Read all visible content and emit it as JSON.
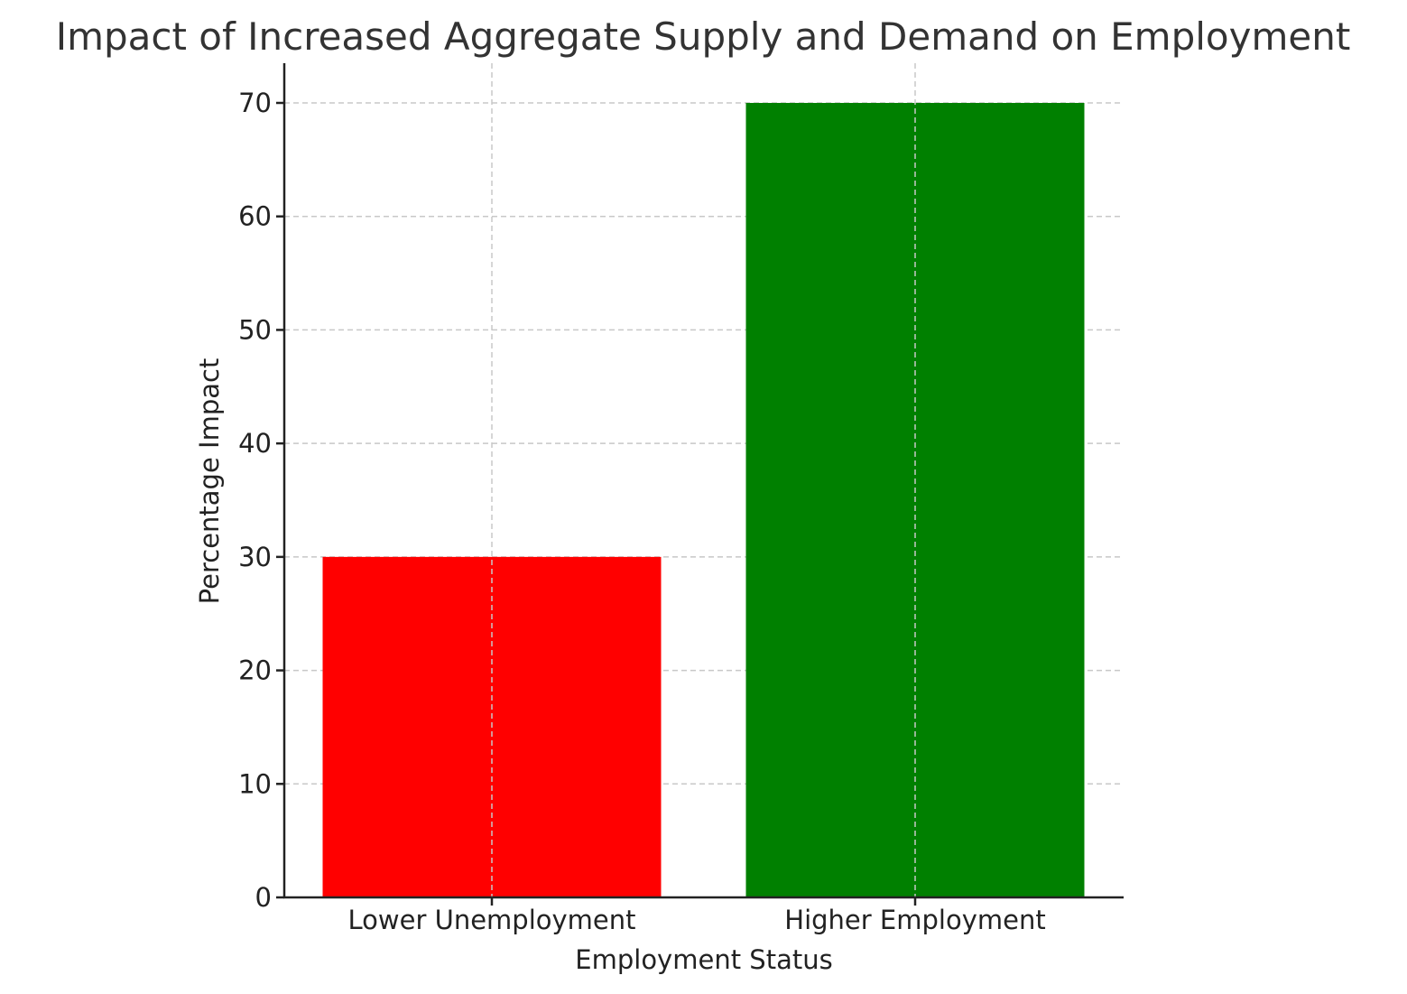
{
  "chart_data": {
    "type": "bar",
    "title": "Impact of Increased Aggregate Supply and Demand on Employment",
    "xlabel": "Employment Status",
    "ylabel": "Percentage Impact",
    "categories": [
      "Lower Unemployment",
      "Higher Employment"
    ],
    "values": [
      30,
      70
    ],
    "colors": [
      "#ff0000",
      "#008000"
    ],
    "ylim": [
      0,
      73.5
    ],
    "yticks": [
      0,
      10,
      20,
      30,
      40,
      50,
      60,
      70
    ],
    "grid": true,
    "legend": "none"
  }
}
